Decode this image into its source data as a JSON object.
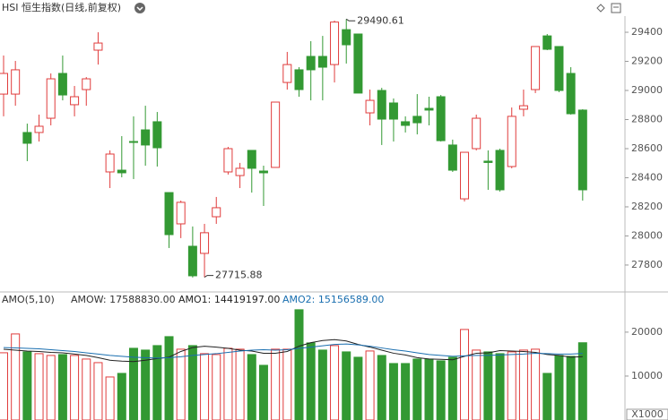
{
  "chart_data": [
    {
      "type": "candlestick",
      "title": "HSI 恒生指数(日线,前复权)",
      "up_color": "#e03c3c",
      "down_color": "#339933",
      "ylim": [
        27615,
        29511
      ],
      "yticks": [
        27800,
        28000,
        28200,
        28400,
        28600,
        28800,
        29000,
        29200,
        29400
      ],
      "open": [
        28975,
        28975,
        28711,
        28711,
        28809,
        29117,
        28902,
        29006,
        29277,
        28440,
        28452,
        28649,
        28729,
        28785,
        28298,
        28083,
        27929,
        27880,
        28132,
        28440,
        28415,
        28588,
        28446,
        28471,
        29055,
        29142,
        29234,
        29234,
        29178,
        29418,
        29388,
        28846,
        29000,
        28914,
        28785,
        28822,
        28877,
        28957,
        28625,
        28255,
        28600,
        28514,
        28588,
        28477,
        28871,
        29006,
        29375,
        29302,
        29117,
        28865
      ],
      "high": [
        29240,
        29203,
        28772,
        28834,
        29117,
        29240,
        29031,
        29092,
        29400,
        28588,
        28686,
        28822,
        28895,
        28852,
        28298,
        28243,
        28065,
        28083,
        28268,
        28612,
        28502,
        28588,
        28483,
        28920,
        29265,
        29160,
        29339,
        29375,
        29480,
        29490.61,
        29388,
        29006,
        29018,
        28945,
        28822,
        28975,
        28957,
        28969,
        28662,
        28575,
        28834,
        28588,
        28600,
        28883,
        29006,
        29302,
        29388,
        29302,
        29160,
        28871
      ],
      "low": [
        28822,
        28895,
        28514,
        28649,
        28760,
        28932,
        28822,
        28895,
        29178,
        28329,
        28403,
        28391,
        28483,
        28477,
        27917,
        27985,
        27714,
        27715.88,
        28083,
        28422,
        28329,
        28298,
        28206,
        28471,
        29006,
        28957,
        28932,
        28932,
        29055,
        29185,
        28982,
        28760,
        28625,
        28649,
        28711,
        28698,
        28760,
        28649,
        28440,
        28237,
        28588,
        28317,
        28305,
        28465,
        28822,
        28982,
        29277,
        28988,
        28834,
        28243
      ],
      "close": [
        29117,
        29142,
        28637,
        28754,
        29080,
        28969,
        28957,
        29080,
        29326,
        28563,
        28434,
        28643,
        28625,
        28606,
        28009,
        28231,
        27726,
        28022,
        28194,
        28600,
        28465,
        28465,
        28434,
        28920,
        29178,
        29006,
        29142,
        29160,
        29470,
        29314,
        28982,
        28932,
        28803,
        28803,
        28760,
        28778,
        28865,
        28655,
        28452,
        28575,
        28809,
        28505,
        28317,
        28822,
        28895,
        29302,
        29283,
        29000,
        28840,
        28317
      ],
      "annotations": [
        {
          "index": 29,
          "label": "29490.61"
        },
        {
          "index": 17,
          "label": "27715.88"
        }
      ]
    },
    {
      "type": "bar",
      "title": "AMO(5,10)",
      "unit_label": "X1000",
      "ylim": [
        0,
        26300
      ],
      "yticks": [
        10000,
        20000
      ],
      "series": [
        {
          "name": "AMOW: 17588830.00",
          "color": "#333333",
          "values": [
            15306,
            19592,
            15510,
            15102,
            14694,
            14898,
            14694,
            13878,
            13061,
            9796,
            10612,
            16327,
            15918,
            16939,
            18980,
            16122,
            16939,
            15102,
            14898,
            16327,
            16122,
            14898,
            12449,
            16122,
            16122,
            25102,
            17551,
            15918,
            16939,
            15510,
            14286,
            15714,
            14694,
            12857,
            12857,
            13878,
            13878,
            13469,
            14286,
            20612,
            15918,
            15510,
            15102,
            15510,
            15918,
            16122,
            10612,
            14694,
            14490,
            17588.83
          ]
        },
        {
          "name": "AMO1: 14419197.00",
          "color": "#222222",
          "values": [
            16100,
            15900,
            15700,
            15600,
            15400,
            15300,
            15000,
            14700,
            14200,
            13600,
            13400,
            13300,
            13600,
            14000,
            14300,
            15600,
            16500,
            16800,
            16600,
            16300,
            15900,
            15700,
            15200,
            15200,
            15600,
            16800,
            17600,
            18100,
            18300,
            18000,
            17200,
            16600,
            15900,
            15200,
            14800,
            14200,
            13900,
            13800,
            13700,
            14500,
            15200,
            15300,
            15800,
            15700,
            15600,
            15400,
            14900,
            14700,
            14300,
            14419.197
          ]
        },
        {
          "name": "AMO2: 15156589.00",
          "color": "#1a6fb0",
          "values": [
            16500,
            16400,
            16300,
            16200,
            16000,
            15800,
            15600,
            15300,
            15000,
            14700,
            14500,
            14300,
            14200,
            14100,
            14200,
            14400,
            14700,
            14900,
            15100,
            15400,
            15700,
            15900,
            16000,
            15900,
            16000,
            16300,
            16600,
            16900,
            17200,
            17300,
            17100,
            16800,
            16400,
            16000,
            15700,
            15300,
            14900,
            14700,
            14500,
            14600,
            14700,
            14700,
            14800,
            14900,
            15000,
            15200,
            15100,
            15000,
            15000,
            15156.589
          ]
        }
      ]
    }
  ]
}
